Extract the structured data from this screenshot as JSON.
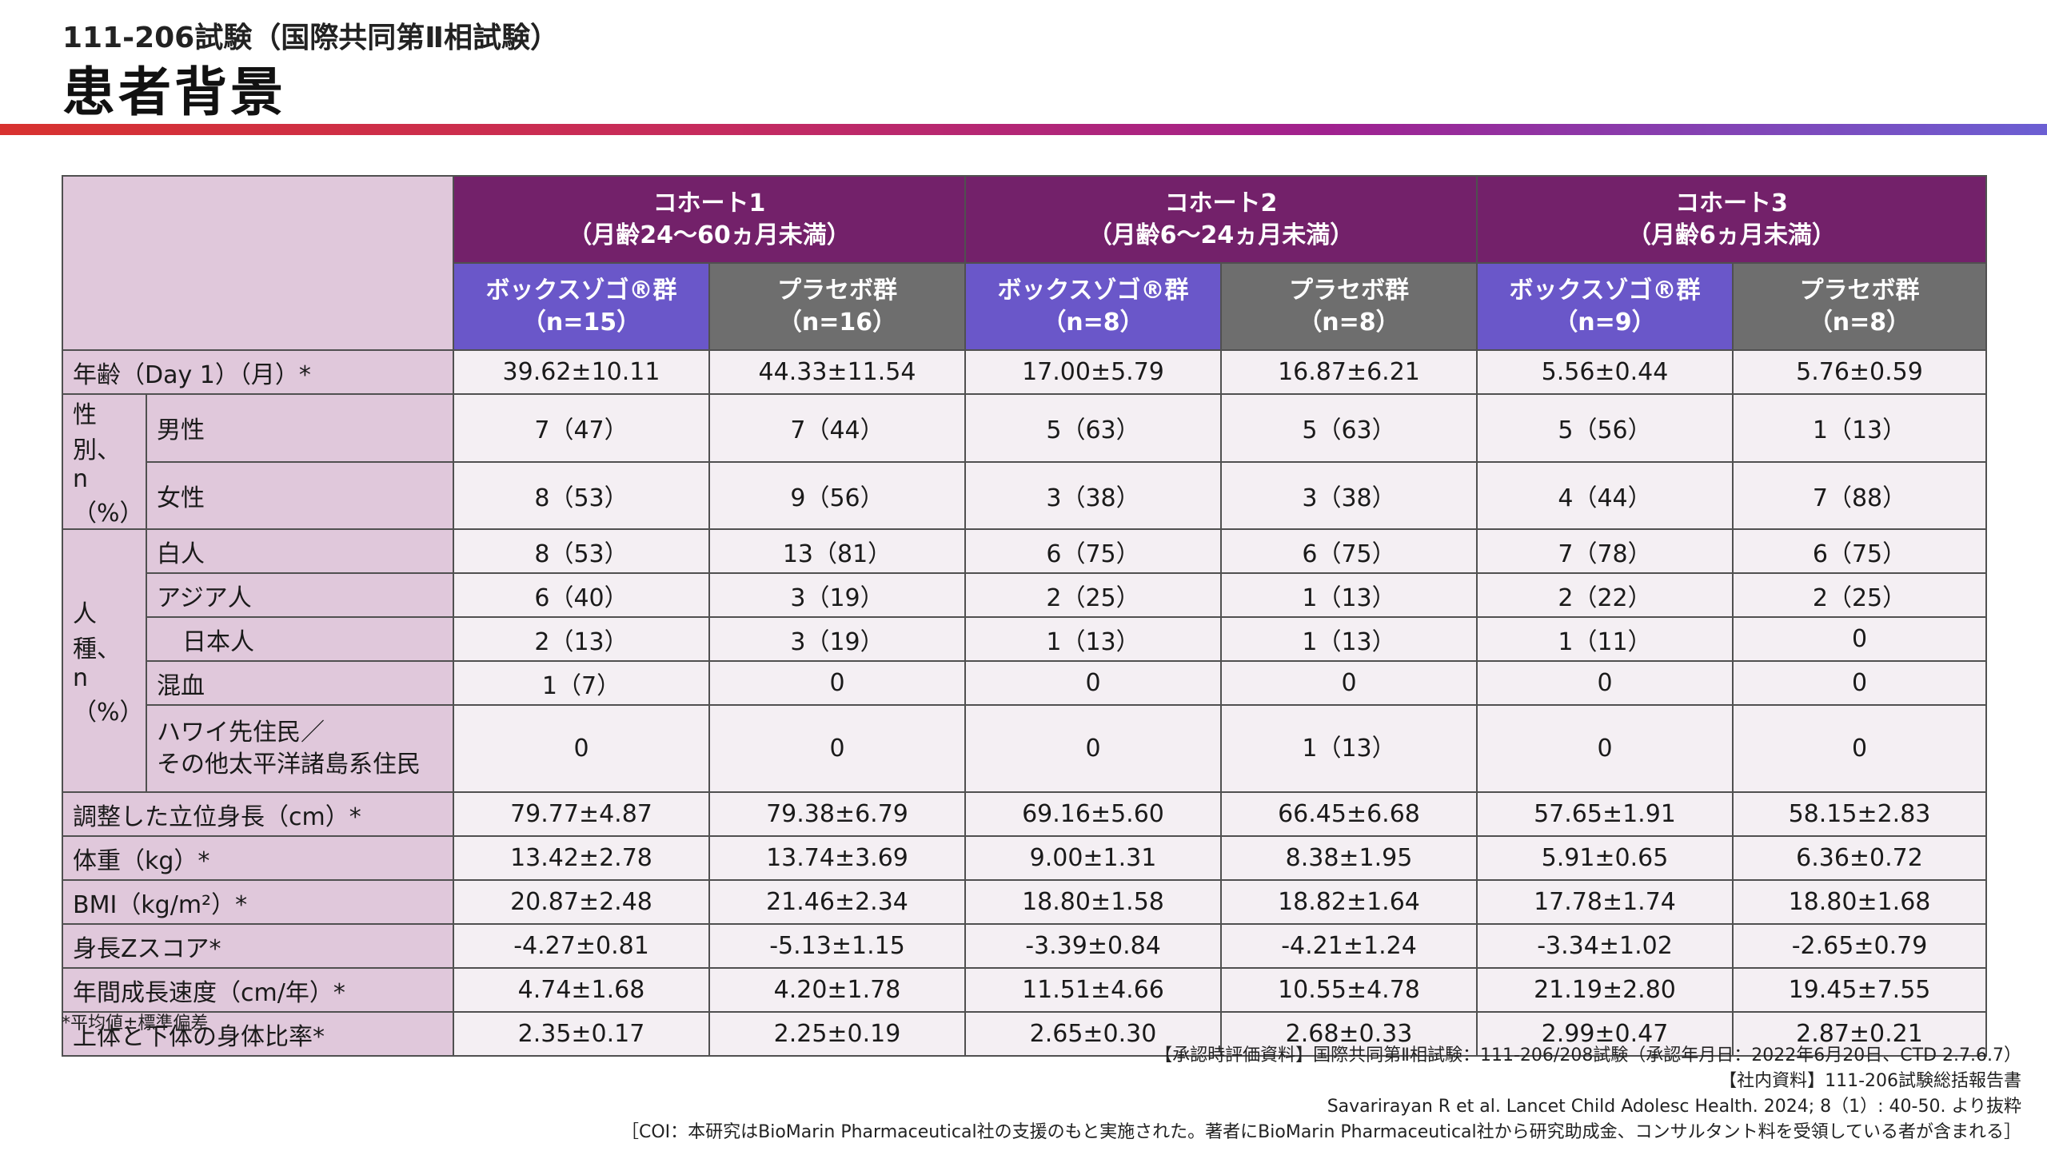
{
  "header": {
    "subtitle": "111-206試験（国際共同第Ⅱ相試験）",
    "title": "患者背景"
  },
  "table": {
    "cohorts": [
      {
        "line1": "コホート1",
        "line2": "（月齢24〜60ヵ月未満）"
      },
      {
        "line1": "コホート2",
        "line2": "（月齢6〜24ヵ月未満）"
      },
      {
        "line1": "コホート3",
        "line2": "（月齢6ヵ月未満）"
      }
    ],
    "groups": [
      {
        "line1": "ボックスゾゴ®群",
        "line2": "（n=15）"
      },
      {
        "line1": "プラセボ群",
        "line2": "（n=16）"
      },
      {
        "line1": "ボックスゾゴ®群",
        "line2": "（n=8）"
      },
      {
        "line1": "プラセボ群",
        "line2": "（n=8）"
      },
      {
        "line1": "ボックスゾゴ®群",
        "line2": "（n=9）"
      },
      {
        "line1": "プラセボ群",
        "line2": "（n=8）"
      }
    ],
    "rows": {
      "age": {
        "label": "年齢（Day 1）（月）*",
        "values": [
          "39.62±10.11",
          "44.33±11.54",
          "17.00±5.79",
          "16.87±6.21",
          "5.56±0.44",
          "5.76±0.59"
        ]
      },
      "sex": {
        "group_label_1": "性別、",
        "group_label_2": "n（%）",
        "male": {
          "label": "男性",
          "values": [
            "7（47）",
            "7（44）",
            "5（63）",
            "5（63）",
            "5（56）",
            "1（13）"
          ]
        },
        "female": {
          "label": "女性",
          "values": [
            "8（53）",
            "9（56）",
            "3（38）",
            "3（38）",
            "4（44）",
            "7（88）"
          ]
        }
      },
      "race": {
        "group_label_1": "人種、",
        "group_label_2": "n（%）",
        "white": {
          "label": "白人",
          "values": [
            "8（53）",
            "13（81）",
            "6（75）",
            "6（75）",
            "7（78）",
            "6（75）"
          ]
        },
        "asian": {
          "label": "アジア人",
          "values": [
            "6（40）",
            "3（19）",
            "2（25）",
            "1（13）",
            "2（22）",
            "2（25）"
          ]
        },
        "japanese": {
          "label": "日本人",
          "values": [
            "2（13）",
            "3（19）",
            "1（13）",
            "1（13）",
            "1（11）",
            "0"
          ]
        },
        "mixed": {
          "label": "混血",
          "values": [
            "1（7）",
            "0",
            "0",
            "0",
            "0",
            "0"
          ]
        },
        "hawaiian": {
          "label_1": "ハワイ先住民／",
          "label_2": "その他太平洋諸島系住民",
          "values": [
            "0",
            "0",
            "0",
            "1（13）",
            "0",
            "0"
          ]
        }
      },
      "height": {
        "label": "調整した立位身長（cm）*",
        "values": [
          "79.77±4.87",
          "79.38±6.79",
          "69.16±5.60",
          "66.45±6.68",
          "57.65±1.91",
          "58.15±2.83"
        ]
      },
      "weight": {
        "label": "体重（kg）*",
        "values": [
          "13.42±2.78",
          "13.74±3.69",
          "9.00±1.31",
          "8.38±1.95",
          "5.91±0.65",
          "6.36±0.72"
        ]
      },
      "bmi": {
        "label": "BMI（kg/m²）*",
        "values": [
          "20.87±2.48",
          "21.46±2.34",
          "18.80±1.58",
          "18.82±1.64",
          "17.78±1.74",
          "18.80±1.68"
        ]
      },
      "zscore": {
        "label": "身長Zスコア*",
        "values": [
          "-4.27±0.81",
          "-5.13±1.15",
          "-3.39±0.84",
          "-4.21±1.24",
          "-3.34±1.02",
          "-2.65±0.79"
        ]
      },
      "agv": {
        "label": "年間成長速度（cm/年）*",
        "values": [
          "4.74±1.68",
          "4.20±1.78",
          "11.51±4.66",
          "10.55±4.78",
          "21.19±2.80",
          "19.45±7.55"
        ]
      },
      "ratio": {
        "label": "上体と下体の身体比率*",
        "values": [
          "2.35±0.17",
          "2.25±0.19",
          "2.65±0.30",
          "2.68±0.33",
          "2.99±0.47",
          "2.87±0.21"
        ]
      }
    }
  },
  "footnote": "*平均値±標準偏差",
  "references": [
    "【承認時評価資料】国際共同第Ⅱ相試験：111-206/208試験（承認年月日：2022年6月20日、CTD 2.7.6.7）",
    "【社内資料】111-206試験総括報告書",
    "Savarirayan R et al. Lancet Child Adolesc Health. 2024; 8（1）: 40-50. より抜粋",
    "［COI：本研究はBioMarin Pharmaceutical社の支援のもと実施された。著者にBioMarin Pharmaceutical社から研究助成金、コンサルタント料を受領している者が含まれる］"
  ],
  "colors": {
    "cohort_header": "#73216a",
    "voxzogo_header": "#6a57c9",
    "placebo_header": "#6e6e6e",
    "label_bg": "#e0c8db",
    "cell_bg": "#f4eff3"
  }
}
